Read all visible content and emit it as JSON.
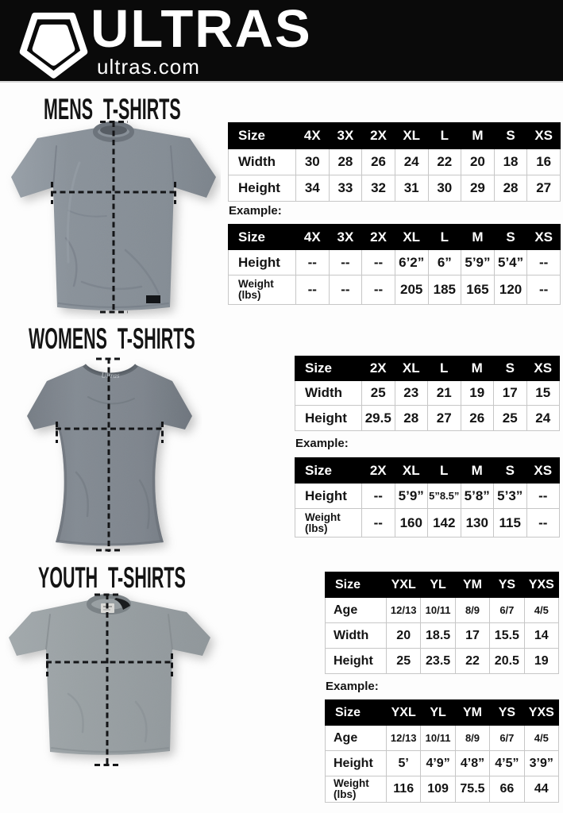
{
  "header": {
    "brand": "ULTRAS",
    "site": "ultras.com",
    "logo_icon": "pentagon-logo-icon"
  },
  "colors": {
    "header_bg": "#0a0a0a",
    "table_header_bg": "#000000",
    "table_border": "#c7c7c7",
    "text": "#141414",
    "shirt_gray_mens": "#878f97",
    "shirt_gray_womens": "#7e858d",
    "shirt_gray_youth": "#99a0a3"
  },
  "sections": [
    {
      "id": "mens",
      "heading": "MENS T-SHIRTS",
      "example_label": "Example:",
      "size_table": {
        "header": [
          "Size",
          "4X",
          "3X",
          "2X",
          "XL",
          "L",
          "M",
          "S",
          "XS"
        ],
        "rows": [
          {
            "label": "Width",
            "values": [
              "30",
              "28",
              "26",
              "24",
              "22",
              "20",
              "18",
              "16"
            ]
          },
          {
            "label": "Height",
            "values": [
              "34",
              "33",
              "32",
              "31",
              "30",
              "29",
              "28",
              "27"
            ]
          }
        ]
      },
      "example_table": {
        "header": [
          "Size",
          "4X",
          "3X",
          "2X",
          "XL",
          "L",
          "M",
          "S",
          "XS"
        ],
        "rows": [
          {
            "label": "Height",
            "values": [
              "--",
              "--",
              "--",
              "6’2”",
              "6”",
              "5’9”",
              "5’4”",
              "--"
            ]
          },
          {
            "label": "Weight (lbs)",
            "values": [
              "--",
              "--",
              "--",
              "205",
              "185",
              "165",
              "120",
              "--"
            ]
          }
        ]
      }
    },
    {
      "id": "womens",
      "heading": "WOMENS T-SHIRTS",
      "example_label": "Example:",
      "size_table": {
        "header": [
          "Size",
          "2X",
          "XL",
          "L",
          "M",
          "S",
          "XS"
        ],
        "rows": [
          {
            "label": "Width",
            "values": [
              "25",
              "23",
              "21",
              "19",
              "17",
              "15"
            ]
          },
          {
            "label": "Height",
            "values": [
              "29.5",
              "28",
              "27",
              "26",
              "25",
              "24"
            ]
          }
        ]
      },
      "example_table": {
        "header": [
          "Size",
          "2X",
          "XL",
          "L",
          "M",
          "S",
          "XS"
        ],
        "rows": [
          {
            "label": "Height",
            "values": [
              "--",
              "5’9”",
              "5”8.5”",
              "5’8”",
              "5’3”",
              "--"
            ]
          },
          {
            "label": "Weight (lbs)",
            "values": [
              "--",
              "160",
              "142",
              "130",
              "115",
              "--"
            ]
          }
        ]
      }
    },
    {
      "id": "youth",
      "heading": "YOUTH T-SHIRTS",
      "example_label": "Example:",
      "size_table": {
        "header": [
          "Size",
          "YXL",
          "YL",
          "YM",
          "YS",
          "YXS"
        ],
        "rows": [
          {
            "label": "Age",
            "values": [
              "12/13",
              "10/11",
              "8/9",
              "6/7",
              "4/5"
            ]
          },
          {
            "label": "Width",
            "values": [
              "20",
              "18.5",
              "17",
              "15.5",
              "14"
            ]
          },
          {
            "label": "Height",
            "values": [
              "25",
              "23.5",
              "22",
              "20.5",
              "19"
            ]
          }
        ]
      },
      "example_table": {
        "header": [
          "Size",
          "YXL",
          "YL",
          "YM",
          "YS",
          "YXS"
        ],
        "rows": [
          {
            "label": "Age",
            "values": [
              "12/13",
              "10/11",
              "8/9",
              "6/7",
              "4/5"
            ]
          },
          {
            "label": "Height",
            "values": [
              "5’",
              "4’9”",
              "4’8”",
              "4’5”",
              "3’9”"
            ]
          },
          {
            "label": "Weight (lbs)",
            "values": [
              "116",
              "109",
              "75.5",
              "66",
              "44"
            ]
          }
        ]
      }
    }
  ]
}
